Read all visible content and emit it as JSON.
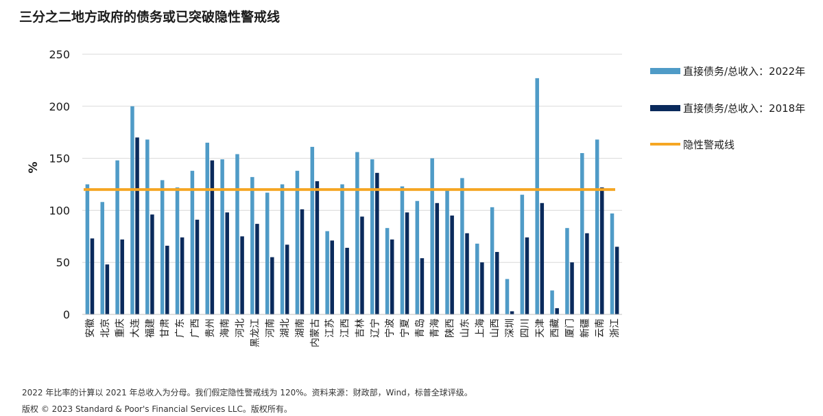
{
  "title": "三分之二地方政府的债务或已突破隐性警戒线",
  "note": "2022 年比率的计算以 2021 年总收入为分母。我们假定隐性警戒线为 120%。资料来源：财政部，Wind，标普全球评级。",
  "copyright": "版权 © 2023 Standard & Poor's Financial Services LLC。版权所有。",
  "colors": {
    "series_2022": "#4f9bc7",
    "series_2018": "#0a2a5c",
    "threshold": "#f5a623",
    "grid": "#d9d9d9"
  },
  "chart_data": {
    "type": "bar",
    "ylabel": "%",
    "ylim": [
      0,
      250
    ],
    "yticks": [
      0,
      50,
      100,
      150,
      200,
      250
    ],
    "grid": true,
    "legend_position": "right",
    "categories": [
      "安徽",
      "北京",
      "重庆",
      "大连",
      "福建",
      "甘肃",
      "广东",
      "广西",
      "贵州",
      "海南",
      "河北",
      "黑龙江",
      "河南",
      "湖北",
      "湖南",
      "内蒙古",
      "江苏",
      "江西",
      "吉林",
      "辽宁",
      "宁波",
      "宁夏",
      "青岛",
      "青海",
      "陕西",
      "山东",
      "上海",
      "山西",
      "深圳",
      "四川",
      "天津",
      "西藏",
      "厦门",
      "新疆",
      "云南",
      "浙江"
    ],
    "series": [
      {
        "name": "直接债务/总收入：2022年",
        "values": [
          125,
          108,
          148,
          200,
          168,
          129,
          122,
          138,
          165,
          149,
          154,
          132,
          117,
          125,
          138,
          161,
          80,
          125,
          156,
          149,
          83,
          123,
          109,
          150,
          120,
          131,
          68,
          103,
          34,
          115,
          227,
          23,
          83,
          155,
          168,
          97
        ]
      },
      {
        "name": "直接债务/总收入：2018年",
        "values": [
          73,
          48,
          72,
          170,
          96,
          66,
          74,
          91,
          148,
          98,
          75,
          87,
          55,
          67,
          101,
          128,
          71,
          64,
          94,
          136,
          72,
          98,
          54,
          107,
          95,
          78,
          50,
          60,
          3,
          74,
          107,
          6,
          50,
          78,
          122,
          65
        ]
      }
    ],
    "threshold": {
      "name": "隐性警戒线",
      "value": 120
    }
  }
}
